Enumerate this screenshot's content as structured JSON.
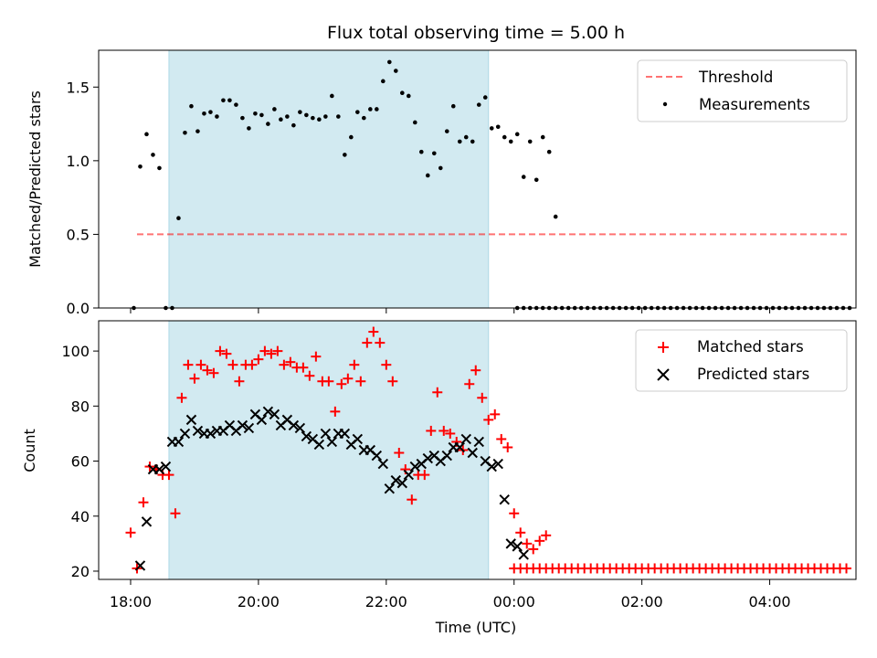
{
  "title": "Flux total observing time = 5.00 h",
  "colors": {
    "window": "#add8e6",
    "threshold": "#ff0000",
    "measurements": "#000000",
    "matched": "#ff0000",
    "predicted": "#000000"
  },
  "chart_data": [
    {
      "type": "scatter",
      "panel": "top",
      "ylabel": "Matched/Predicted stars",
      "ylim": [
        0,
        1.75
      ],
      "yticks": [
        0.0,
        0.5,
        1.0,
        1.5
      ],
      "ytick_labels": [
        "0.0",
        "0.5",
        "1.0",
        "1.5"
      ],
      "xlim_hours": [
        17.5,
        29.35
      ],
      "observing_window_hours": [
        18.6,
        23.6
      ],
      "legend": {
        "placement": "top-right",
        "entries": [
          "Threshold",
          "Measurements"
        ]
      },
      "threshold": {
        "name": "Threshold",
        "value": 0.5,
        "x_hours": [
          18.1,
          29.25
        ],
        "style": "dashed"
      },
      "series": [
        {
          "name": "Measurements",
          "x": [
            18.05,
            18.15,
            18.25,
            18.35,
            18.45,
            18.55,
            18.65,
            18.75,
            18.85,
            18.95,
            19.05,
            19.15,
            19.25,
            19.35,
            19.45,
            19.55,
            19.65,
            19.75,
            19.85,
            19.95,
            20.05,
            20.15,
            20.25,
            20.35,
            20.45,
            20.55,
            20.65,
            20.75,
            20.85,
            20.95,
            21.05,
            21.15,
            21.25,
            21.35,
            21.45,
            21.55,
            21.65,
            21.75,
            21.85,
            21.95,
            22.05,
            22.15,
            22.25,
            22.35,
            22.45,
            22.55,
            22.65,
            22.75,
            22.85,
            22.95,
            23.05,
            23.15,
            23.25,
            23.35,
            23.45,
            23.55,
            23.65
          ],
          "values": [
            0.0,
            0.96,
            1.18,
            1.04,
            0.95,
            0.0,
            0.0,
            0.61,
            1.19,
            1.37,
            1.2,
            1.32,
            1.33,
            1.3,
            1.41,
            1.41,
            1.38,
            1.29,
            1.22,
            1.32,
            1.31,
            1.25,
            1.35,
            1.28,
            1.3,
            1.24,
            1.33,
            1.31,
            1.29,
            1.28,
            1.3,
            1.44,
            1.3,
            1.04,
            1.16,
            1.33,
            1.29,
            1.35,
            1.35,
            1.54,
            1.67,
            1.61,
            1.46,
            1.44,
            1.26,
            1.06,
            0.9,
            1.05,
            0.95,
            1.2,
            1.37,
            1.13,
            1.16,
            1.13,
            1.38,
            1.43,
            1.22
          ],
          "x2": [
            23.75,
            23.85,
            23.95,
            24.05,
            24.15,
            24.25,
            24.35,
            24.45,
            24.55,
            24.65
          ],
          "values2": [
            1.23,
            1.16,
            1.13,
            1.18,
            0.89,
            1.13,
            0.87,
            1.16,
            1.06,
            0.62
          ]
        }
      ]
    },
    {
      "type": "scatter",
      "panel": "bottom",
      "xlabel": "Time (UTC)",
      "ylabel": "Count",
      "ylim": [
        17,
        111
      ],
      "yticks": [
        20,
        40,
        60,
        80,
        100
      ],
      "ytick_labels": [
        "20",
        "40",
        "60",
        "80",
        "100"
      ],
      "xticks_hours": [
        18,
        20,
        22,
        24,
        26,
        28
      ],
      "xtick_labels": [
        "18:00",
        "20:00",
        "22:00",
        "00:00",
        "02:00",
        "04:00"
      ],
      "observing_window_hours": [
        18.6,
        23.6
      ],
      "legend": {
        "placement": "top-right",
        "entries": [
          "Matched stars",
          "Predicted stars"
        ]
      },
      "series": [
        {
          "name": "Matched stars",
          "marker": "plus",
          "x": [
            18.0,
            18.1,
            18.2,
            18.3,
            18.4,
            18.5,
            18.6,
            18.7,
            18.8,
            18.9,
            19.0,
            19.1,
            19.2,
            19.3,
            19.4,
            19.5,
            19.6,
            19.7,
            19.8,
            19.9,
            20.0,
            20.1,
            20.2,
            20.3,
            20.4,
            20.5,
            20.6,
            20.7,
            20.8,
            20.9,
            21.0,
            21.1,
            21.2,
            21.3,
            21.4,
            21.5,
            21.6,
            21.7,
            21.8,
            21.9,
            22.0,
            22.1,
            22.2,
            22.3,
            22.4,
            22.5,
            22.6,
            22.7,
            22.8,
            22.9,
            23.0,
            23.1,
            23.2,
            23.3,
            23.4,
            23.5,
            23.6,
            23.7,
            23.8,
            23.9,
            24.0,
            24.1,
            24.2,
            24.3,
            24.4,
            24.5
          ],
          "values": [
            34,
            21,
            45,
            58,
            57,
            55,
            55,
            41,
            83,
            95,
            90,
            95,
            93,
            92,
            100,
            99,
            95,
            89,
            95,
            95,
            97,
            100,
            99,
            100,
            95,
            96,
            94,
            94,
            91,
            98,
            89,
            89,
            78,
            88,
            90,
            95,
            89,
            103,
            107,
            103,
            95,
            89,
            63,
            57,
            46,
            55,
            55,
            71,
            85,
            71,
            70,
            67,
            64,
            88,
            93,
            83,
            75,
            77,
            68,
            65,
            41,
            34,
            30,
            28,
            31,
            33
          ]
        },
        {
          "name": "Predicted stars",
          "marker": "x",
          "x": [
            18.15,
            18.25,
            18.35,
            18.45,
            18.55,
            18.65,
            18.75,
            18.85,
            18.95,
            19.05,
            19.15,
            19.25,
            19.35,
            19.45,
            19.55,
            19.65,
            19.75,
            19.85,
            19.95,
            20.05,
            20.15,
            20.25,
            20.35,
            20.45,
            20.55,
            20.65,
            20.75,
            20.85,
            20.95,
            21.05,
            21.15,
            21.25,
            21.35,
            21.45,
            21.55,
            21.65,
            21.75,
            21.85,
            21.95,
            22.05,
            22.15,
            22.25,
            22.35,
            22.45,
            22.55,
            22.65,
            22.75,
            22.85,
            22.95,
            23.05,
            23.15,
            23.25,
            23.35,
            23.45,
            23.55,
            23.65,
            23.75,
            23.85,
            23.95,
            24.05,
            24.15
          ],
          "values": [
            22,
            38,
            57,
            57,
            58,
            67,
            67,
            70,
            75,
            71,
            70,
            70,
            71,
            71,
            73,
            71,
            73,
            72,
            77,
            75,
            78,
            77,
            73,
            75,
            73,
            72,
            69,
            68,
            66,
            70,
            67,
            70,
            70,
            66,
            68,
            64,
            64,
            62,
            59,
            50,
            53,
            52,
            55,
            58,
            59,
            61,
            62,
            60,
            62,
            65,
            65,
            68,
            63,
            67,
            60,
            58,
            59,
            46,
            30,
            29,
            26
          ]
        }
      ],
      "zero_sequence": {
        "x_start_hours": 24.0,
        "x_end_hours": 29.25,
        "step_hours": 0.1,
        "count_value": 21,
        "ratio_value": 0.0
      }
    }
  ]
}
